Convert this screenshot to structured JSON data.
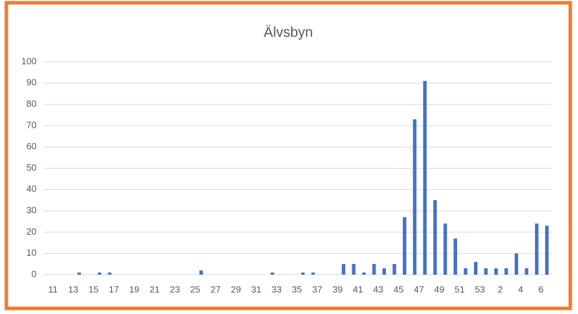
{
  "chart_data": {
    "type": "bar",
    "title": "Älvsbyn",
    "categories": [
      "11",
      null,
      "13",
      null,
      "15",
      null,
      "17",
      null,
      "19",
      null,
      "21",
      null,
      "23",
      null,
      "25",
      null,
      "27",
      null,
      "29",
      null,
      "31",
      null,
      "33",
      null,
      "35",
      null,
      "37",
      null,
      "39",
      null,
      "41",
      null,
      "43",
      null,
      "45",
      null,
      "47",
      null,
      "49",
      null,
      "51",
      null,
      "53",
      null,
      "2",
      null,
      "4",
      null,
      "6",
      null
    ],
    "values": [
      0,
      0,
      0,
      1,
      0,
      1,
      1,
      0,
      0,
      0,
      0,
      0,
      0,
      0,
      0,
      2,
      0,
      0,
      0,
      0,
      0,
      0,
      1,
      0,
      0,
      1,
      1,
      0,
      0,
      5,
      5,
      1,
      5,
      3,
      5,
      27,
      73,
      91,
      35,
      24,
      17,
      3,
      6,
      3,
      3,
      3,
      10,
      3,
      24,
      23
    ],
    "color": "#4472c4",
    "ylim": [
      0,
      100
    ],
    "yticks": [
      0,
      10,
      20,
      30,
      40,
      50,
      60,
      70,
      80,
      90,
      100
    ],
    "grid": true
  }
}
